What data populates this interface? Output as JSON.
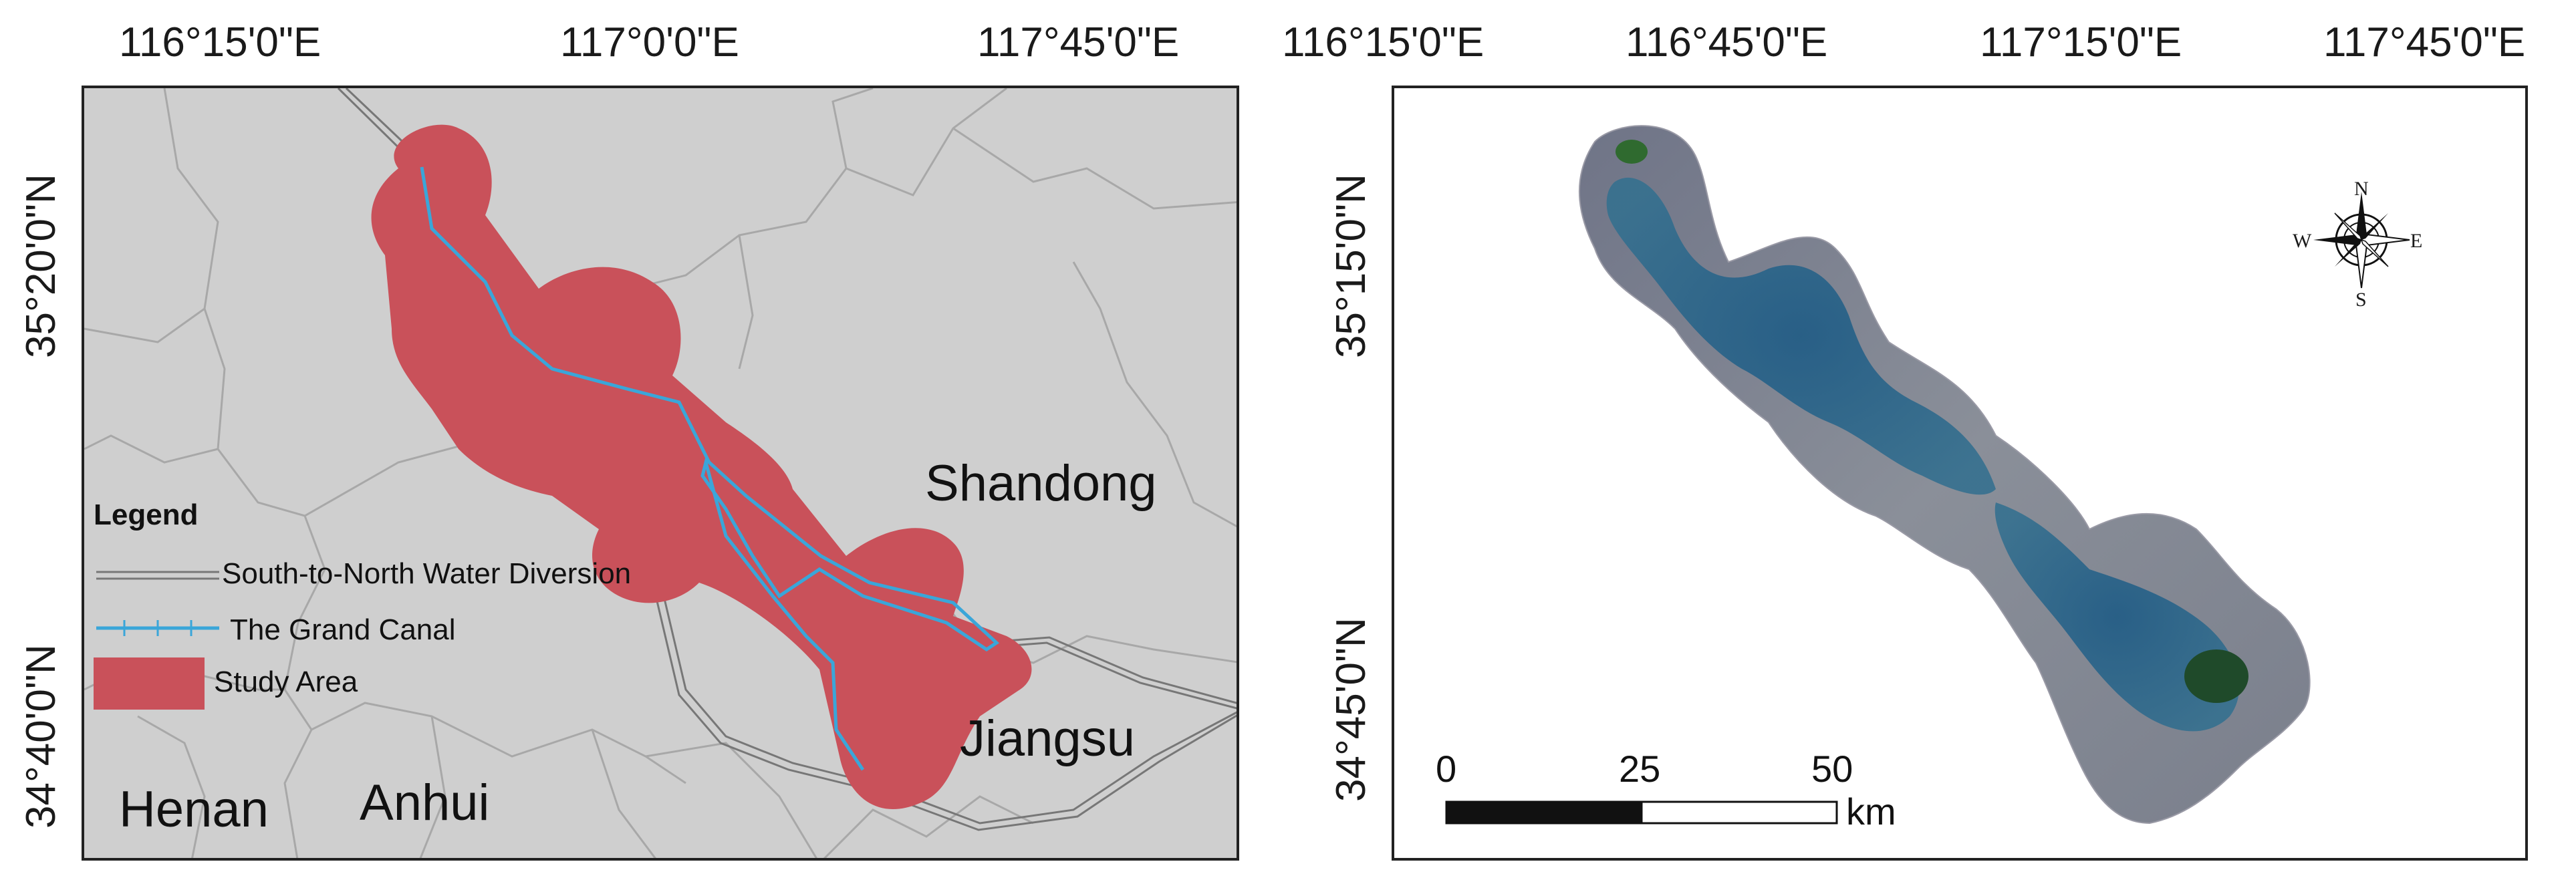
{
  "left_map": {
    "x_ticks": [
      "116°15'0\"E",
      "117°0'0\"E",
      "117°45'0\"E"
    ],
    "y_ticks": [
      "35°20'0\"N",
      "34°40'0\"N"
    ],
    "regions": {
      "shandong": "Shandong",
      "jiangsu": "Jiangsu",
      "henan": "Henan",
      "anhui": "Anhui"
    },
    "legend": {
      "title": "Legend",
      "items": [
        {
          "label": "South-to-North Water Diversion",
          "symbol": "double-line-icon"
        },
        {
          "label": "The Grand Canal",
          "symbol": "canal-line-icon"
        },
        {
          "label": "Study Area",
          "symbol": "study-area-swatch"
        }
      ]
    },
    "colors": {
      "background": "#cfcfcf",
      "study_area": "#c9515a",
      "canal": "#3aa6d9",
      "boundary": "#a8a8a8",
      "diversion": "#777777"
    }
  },
  "right_map": {
    "x_ticks": [
      "116°15'0\"E",
      "116°45'0\"E",
      "117°15'0\"E",
      "117°45'0\"E"
    ],
    "y_ticks": [
      "35°15'0\"N",
      "34°45'0\"N"
    ],
    "compass": {
      "n": "N",
      "s": "S",
      "e": "E",
      "w": "W",
      "icon": "compass-rose-icon"
    },
    "scale_bar": {
      "labels": [
        "0",
        "25",
        "50"
      ],
      "unit": "km"
    }
  }
}
